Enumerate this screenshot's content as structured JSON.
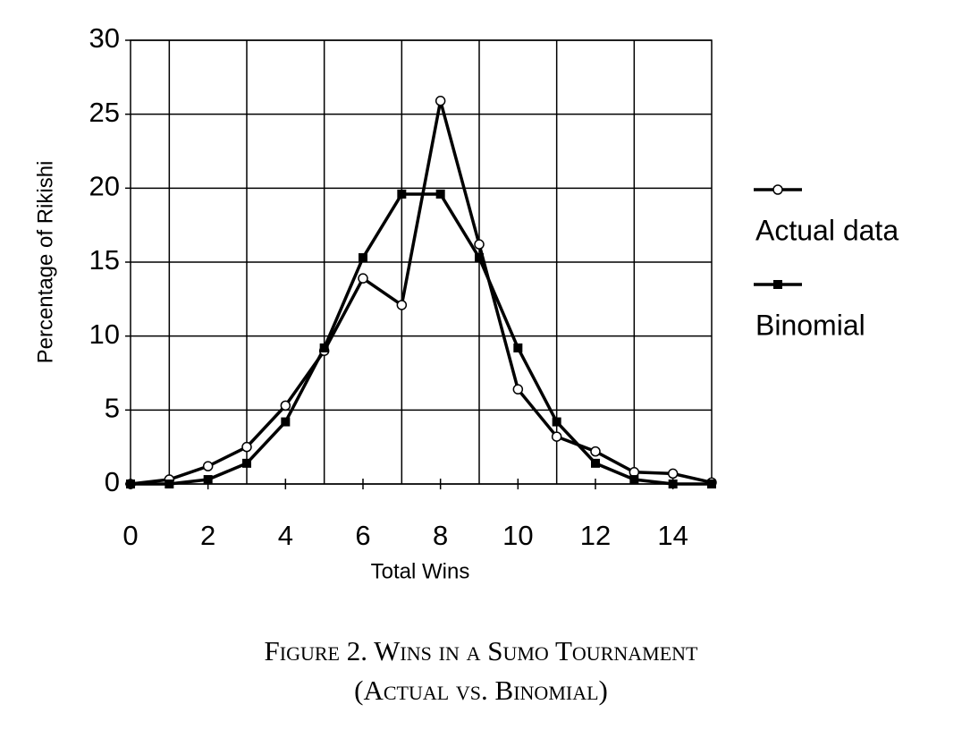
{
  "chart_data": {
    "type": "line",
    "x_label": "Total Wins",
    "y_label": "Percentage of Rikishi",
    "x": [
      0,
      1,
      2,
      3,
      4,
      5,
      6,
      7,
      8,
      9,
      10,
      11,
      12,
      13,
      14,
      15
    ],
    "series": [
      {
        "name": "Actual data",
        "color": "#000000",
        "marker": "circle",
        "values": [
          0,
          0.3,
          1.2,
          2.5,
          5.3,
          9.0,
          13.9,
          12.1,
          25.9,
          16.2,
          6.4,
          3.2,
          2.2,
          0.8,
          0.7,
          0.1
        ]
      },
      {
        "name": "Binomial",
        "color": "#000000",
        "marker": "square",
        "values": [
          0,
          0,
          0.3,
          1.4,
          4.2,
          9.2,
          15.3,
          19.6,
          19.6,
          15.3,
          9.2,
          4.2,
          1.4,
          0.3,
          0,
          0
        ]
      }
    ],
    "xlim": [
      0,
      15
    ],
    "xticks": [
      0,
      2,
      4,
      6,
      8,
      10,
      12,
      14
    ],
    "xgrid": [
      1,
      3,
      5,
      7,
      9,
      11,
      13
    ],
    "ylim": [
      0,
      30
    ],
    "yticks": [
      0,
      5,
      10,
      15,
      20,
      25,
      30
    ],
    "grid": true,
    "legend": "right",
    "caption": [
      "Figure 2. Wins in a Sumo Tournament",
      "(Actual vs. Binomial)"
    ]
  }
}
